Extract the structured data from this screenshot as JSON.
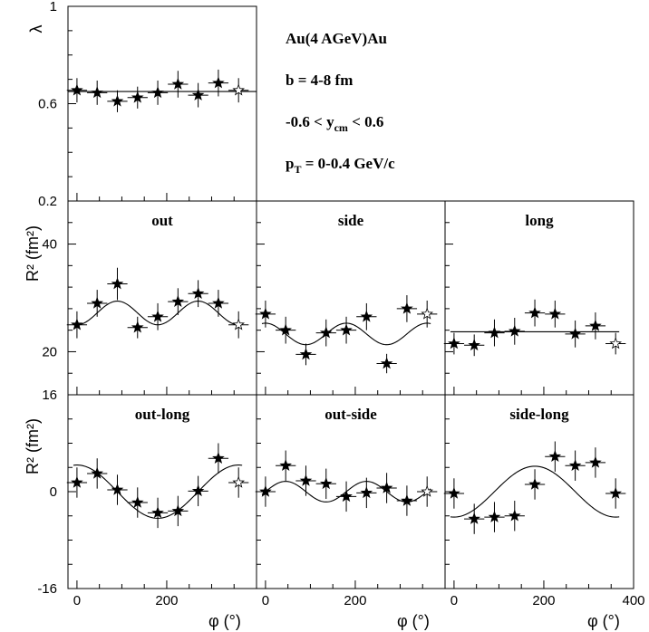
{
  "chart_data": {
    "type": "scatter",
    "x_tick_labels": [
      "0",
      "200",
      "400"
    ],
    "x_tick_labels_last": [
      "0",
      "200",
      "400"
    ],
    "xlim": [
      -20,
      400
    ],
    "xlabel": "φ (°)",
    "info_lines": {
      "line1": "Au(4 AGeV)Au",
      "line2": "b = 4-8 fm",
      "line3_pre": "-0.6 < y",
      "line3_sub": "cm",
      "line3_post": " < 0.6",
      "line4_pre": "p",
      "line4_sub": "T",
      "line4_post": " = 0-0.4 GeV/c"
    },
    "lambda_panel": {
      "ylabel": "λ",
      "ylim": [
        0.2,
        1.0
      ],
      "y_tick_labels": [
        "1",
        "0.6",
        "0.2"
      ],
      "fit_constant": 0.65,
      "points": [
        {
          "x": 0,
          "y": 0.655,
          "err": 0.05,
          "open": false
        },
        {
          "x": 45,
          "y": 0.645,
          "err": 0.05,
          "open": false
        },
        {
          "x": 90,
          "y": 0.61,
          "err": 0.045,
          "open": false
        },
        {
          "x": 135,
          "y": 0.625,
          "err": 0.045,
          "open": false
        },
        {
          "x": 180,
          "y": 0.645,
          "err": 0.05,
          "open": false
        },
        {
          "x": 225,
          "y": 0.68,
          "err": 0.055,
          "open": false
        },
        {
          "x": 270,
          "y": 0.635,
          "err": 0.05,
          "open": false
        },
        {
          "x": 315,
          "y": 0.685,
          "err": 0.055,
          "open": false
        },
        {
          "x": 360,
          "y": 0.655,
          "err": 0.05,
          "open": true
        }
      ]
    },
    "row2": {
      "ylabel": "R² (fm²)",
      "ylim": [
        12,
        48
      ],
      "y_tick_labels": [
        "40",
        "20"
      ],
      "panels": [
        {
          "title": "out",
          "fit": {
            "a": 27.2,
            "b": -2.2,
            "phase_deg": 0,
            "harm": 2
          },
          "points": [
            {
              "x": 0,
              "y": 25.0,
              "err": 2.5,
              "open": false
            },
            {
              "x": 45,
              "y": 29.0,
              "err": 2.5,
              "open": false
            },
            {
              "x": 90,
              "y": 32.6,
              "err": 3.0,
              "open": false
            },
            {
              "x": 135,
              "y": 24.5,
              "err": 2.0,
              "open": false
            },
            {
              "x": 180,
              "y": 26.5,
              "err": 2.5,
              "open": false
            },
            {
              "x": 225,
              "y": 29.3,
              "err": 2.5,
              "open": false
            },
            {
              "x": 270,
              "y": 30.8,
              "err": 2.5,
              "open": false
            },
            {
              "x": 315,
              "y": 29.0,
              "err": 2.5,
              "open": false
            },
            {
              "x": 360,
              "y": 25.0,
              "err": 2.5,
              "open": true
            }
          ]
        },
        {
          "title": "side",
          "fit": {
            "a": 23.3,
            "b": 2.0,
            "phase_deg": 0,
            "harm": 2
          },
          "points": [
            {
              "x": 0,
              "y": 27.0,
              "err": 2.5,
              "open": false
            },
            {
              "x": 45,
              "y": 24.0,
              "err": 2.5,
              "open": false
            },
            {
              "x": 90,
              "y": 19.5,
              "err": 2.0,
              "open": false
            },
            {
              "x": 135,
              "y": 23.5,
              "err": 2.5,
              "open": false
            },
            {
              "x": 180,
              "y": 24.0,
              "err": 2.5,
              "open": false
            },
            {
              "x": 225,
              "y": 26.5,
              "err": 2.5,
              "open": false
            },
            {
              "x": 270,
              "y": 17.8,
              "err": 1.8,
              "open": false
            },
            {
              "x": 315,
              "y": 28.0,
              "err": 2.5,
              "open": false
            },
            {
              "x": 360,
              "y": 27.0,
              "err": 2.5,
              "open": true
            }
          ]
        },
        {
          "title": "long",
          "fit": {
            "a": 23.7,
            "b": 0,
            "phase_deg": 0,
            "harm": 2
          },
          "points": [
            {
              "x": 0,
              "y": 21.5,
              "err": 2.0,
              "open": false
            },
            {
              "x": 45,
              "y": 21.2,
              "err": 2.0,
              "open": false
            },
            {
              "x": 90,
              "y": 23.5,
              "err": 2.5,
              "open": false
            },
            {
              "x": 135,
              "y": 23.8,
              "err": 2.5,
              "open": false
            },
            {
              "x": 180,
              "y": 27.2,
              "err": 2.5,
              "open": false
            },
            {
              "x": 225,
              "y": 27.0,
              "err": 2.5,
              "open": false
            },
            {
              "x": 270,
              "y": 23.3,
              "err": 2.5,
              "open": false
            },
            {
              "x": 315,
              "y": 24.8,
              "err": 2.5,
              "open": false
            },
            {
              "x": 360,
              "y": 21.5,
              "err": 2.0,
              "open": true
            }
          ]
        }
      ]
    },
    "row3": {
      "ylabel": "R² (fm²)",
      "ylim": [
        -16,
        16
      ],
      "y_tick_labels": [
        "16",
        "0",
        "-16"
      ],
      "panels": [
        {
          "title": "out-long",
          "fit": {
            "a": 0,
            "b": 4.4,
            "phase_deg": 0,
            "harm": 1
          },
          "points": [
            {
              "x": 0,
              "y": 1.5,
              "err": 2.5,
              "open": false
            },
            {
              "x": 45,
              "y": 3.0,
              "err": 2.5,
              "open": false
            },
            {
              "x": 90,
              "y": 0.3,
              "err": 2.5,
              "open": false
            },
            {
              "x": 135,
              "y": -1.8,
              "err": 2.5,
              "open": false
            },
            {
              "x": 180,
              "y": -3.5,
              "err": 2.5,
              "open": false
            },
            {
              "x": 225,
              "y": -3.2,
              "err": 2.5,
              "open": false
            },
            {
              "x": 270,
              "y": 0.1,
              "err": 2.5,
              "open": false
            },
            {
              "x": 315,
              "y": 5.5,
              "err": 2.5,
              "open": false
            },
            {
              "x": 360,
              "y": 1.5,
              "err": 2.5,
              "open": true
            }
          ]
        },
        {
          "title": "out-side",
          "fit": {
            "a": 0,
            "b": 1.7,
            "phase_deg": 45,
            "harm": 2
          },
          "points": [
            {
              "x": 0,
              "y": 0.0,
              "err": 2.5,
              "open": false
            },
            {
              "x": 45,
              "y": 4.3,
              "err": 2.5,
              "open": false
            },
            {
              "x": 90,
              "y": 1.8,
              "err": 2.5,
              "open": false
            },
            {
              "x": 135,
              "y": 1.3,
              "err": 2.5,
              "open": false
            },
            {
              "x": 180,
              "y": -0.8,
              "err": 2.5,
              "open": false
            },
            {
              "x": 225,
              "y": -0.2,
              "err": 2.5,
              "open": false
            },
            {
              "x": 270,
              "y": 0.6,
              "err": 2.5,
              "open": false
            },
            {
              "x": 315,
              "y": -1.5,
              "err": 2.5,
              "open": false
            },
            {
              "x": 360,
              "y": 0.0,
              "err": 2.5,
              "open": true
            }
          ]
        },
        {
          "title": "side-long",
          "fit": {
            "a": 0,
            "b": -4.2,
            "phase_deg": 0,
            "harm": 1
          },
          "points": [
            {
              "x": 0,
              "y": -0.3,
              "err": 2.5,
              "open": false
            },
            {
              "x": 45,
              "y": -4.5,
              "err": 2.5,
              "open": false
            },
            {
              "x": 90,
              "y": -4.2,
              "err": 2.5,
              "open": false
            },
            {
              "x": 135,
              "y": -4.0,
              "err": 2.5,
              "open": false
            },
            {
              "x": 180,
              "y": 1.2,
              "err": 2.5,
              "open": false
            },
            {
              "x": 225,
              "y": 5.8,
              "err": 2.5,
              "open": false
            },
            {
              "x": 270,
              "y": 4.3,
              "err": 2.5,
              "open": false
            },
            {
              "x": 315,
              "y": 4.8,
              "err": 2.5,
              "open": false
            },
            {
              "x": 360,
              "y": -0.3,
              "err": 2.5,
              "open": false
            }
          ]
        }
      ]
    }
  }
}
